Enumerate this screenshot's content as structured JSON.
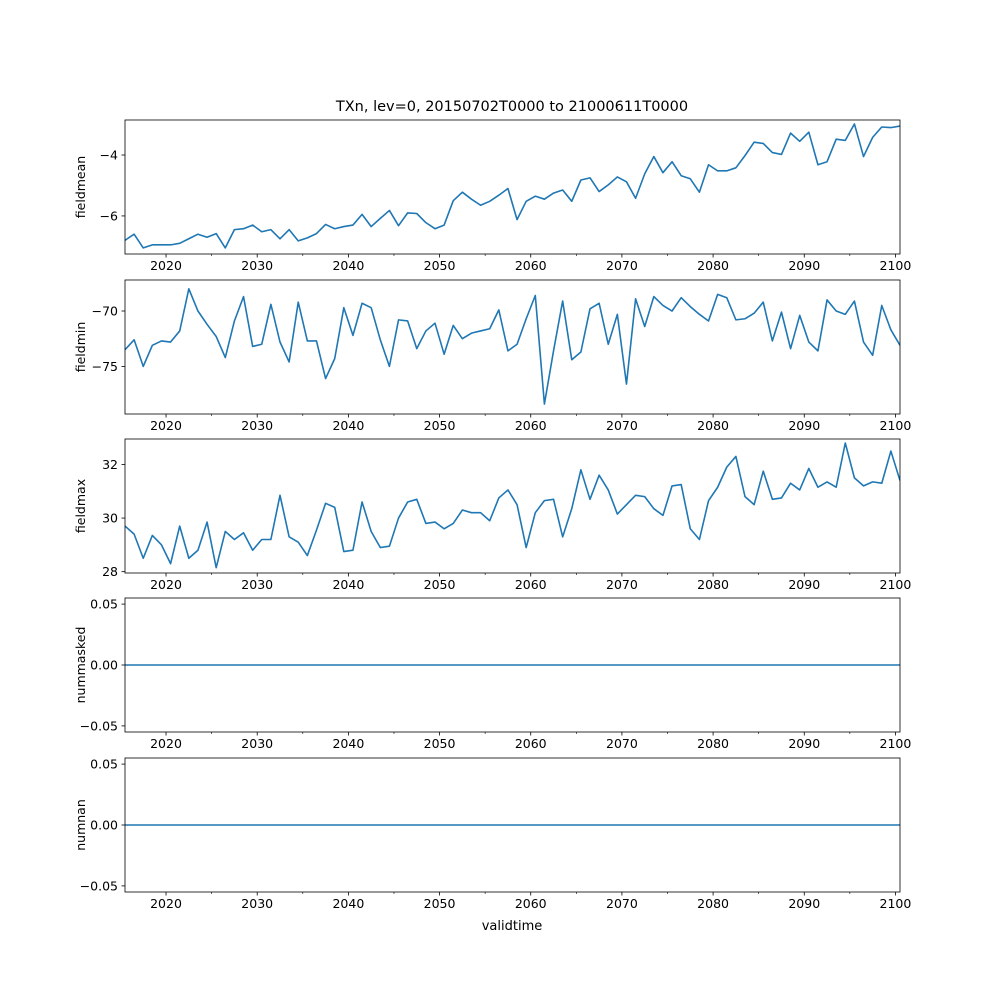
{
  "figure": {
    "title": "TXn, lev=0, 20150702T0000 to 21000611T0000",
    "xlabel": "validtime",
    "line_color": "#1f77b4"
  },
  "chart_data": [
    {
      "type": "line",
      "name": "fieldmean",
      "ylabel": "fieldmean",
      "xlim": [
        2015.5,
        2100.5
      ],
      "ylim": [
        -7.25,
        -2.85
      ],
      "yticks": [
        {
          "v": -6,
          "label": "−6"
        },
        {
          "v": -4,
          "label": "−4"
        }
      ],
      "x": [
        2015.5,
        2016.5,
        2017.5,
        2018.5,
        2019.5,
        2020.5,
        2021.5,
        2022.5,
        2023.5,
        2024.5,
        2025.5,
        2026.5,
        2027.5,
        2028.5,
        2029.5,
        2030.5,
        2031.5,
        2032.5,
        2033.5,
        2034.5,
        2035.5,
        2036.5,
        2037.5,
        2038.5,
        2039.5,
        2040.5,
        2041.5,
        2042.5,
        2043.5,
        2044.5,
        2045.5,
        2046.5,
        2047.5,
        2048.5,
        2049.5,
        2050.5,
        2051.5,
        2052.5,
        2053.5,
        2054.5,
        2055.5,
        2056.5,
        2057.5,
        2058.5,
        2059.5,
        2060.5,
        2061.5,
        2062.5,
        2063.5,
        2064.5,
        2065.5,
        2066.5,
        2067.5,
        2068.5,
        2069.5,
        2070.5,
        2071.5,
        2072.5,
        2073.5,
        2074.5,
        2075.5,
        2076.5,
        2077.5,
        2078.5,
        2079.5,
        2080.5,
        2081.5,
        2082.5,
        2083.5,
        2084.5,
        2085.5,
        2086.5,
        2087.5,
        2088.5,
        2089.5,
        2090.5,
        2091.5,
        2092.5,
        2093.5,
        2094.5,
        2095.5,
        2096.5,
        2097.5,
        2098.5,
        2099.5,
        2100.5
      ],
      "values": [
        -6.8,
        -6.6,
        -7.05,
        -6.95,
        -6.95,
        -6.95,
        -6.9,
        -6.75,
        -6.6,
        -6.7,
        -6.58,
        -7.05,
        -6.45,
        -6.42,
        -6.3,
        -6.52,
        -6.45,
        -6.75,
        -6.45,
        -6.82,
        -6.72,
        -6.58,
        -6.28,
        -6.42,
        -6.35,
        -6.3,
        -5.95,
        -6.35,
        -6.08,
        -5.82,
        -6.32,
        -5.9,
        -5.92,
        -6.22,
        -6.42,
        -6.3,
        -5.5,
        -5.22,
        -5.45,
        -5.65,
        -5.52,
        -5.32,
        -5.1,
        -6.12,
        -5.52,
        -5.35,
        -5.45,
        -5.25,
        -5.15,
        -5.52,
        -4.82,
        -4.75,
        -5.2,
        -4.98,
        -4.72,
        -4.88,
        -5.42,
        -4.62,
        -4.05,
        -4.58,
        -4.22,
        -4.68,
        -4.78,
        -5.22,
        -4.32,
        -4.52,
        -4.52,
        -4.42,
        -4.02,
        -3.58,
        -3.62,
        -3.92,
        -3.98,
        -3.28,
        -3.55,
        -3.25,
        -4.32,
        -4.22,
        -3.48,
        -3.52,
        -2.98,
        -4.05,
        -3.42,
        -3.08,
        -3.1,
        -3.05
      ]
    },
    {
      "type": "line",
      "name": "fieldmin",
      "ylabel": "fieldmin",
      "xlim": [
        2015.5,
        2100.5
      ],
      "ylim": [
        -79.3,
        -67.2
      ],
      "yticks": [
        {
          "v": -75,
          "label": "−75"
        },
        {
          "v": -70,
          "label": "−70"
        }
      ],
      "x": [
        2015.5,
        2016.5,
        2017.5,
        2018.5,
        2019.5,
        2020.5,
        2021.5,
        2022.5,
        2023.5,
        2024.5,
        2025.5,
        2026.5,
        2027.5,
        2028.5,
        2029.5,
        2030.5,
        2031.5,
        2032.5,
        2033.5,
        2034.5,
        2035.5,
        2036.5,
        2037.5,
        2038.5,
        2039.5,
        2040.5,
        2041.5,
        2042.5,
        2043.5,
        2044.5,
        2045.5,
        2046.5,
        2047.5,
        2048.5,
        2049.5,
        2050.5,
        2051.5,
        2052.5,
        2053.5,
        2054.5,
        2055.5,
        2056.5,
        2057.5,
        2058.5,
        2059.5,
        2060.5,
        2061.5,
        2062.5,
        2063.5,
        2064.5,
        2065.5,
        2066.5,
        2067.5,
        2068.5,
        2069.5,
        2070.5,
        2071.5,
        2072.5,
        2073.5,
        2074.5,
        2075.5,
        2076.5,
        2077.5,
        2078.5,
        2079.5,
        2080.5,
        2081.5,
        2082.5,
        2083.5,
        2084.5,
        2085.5,
        2086.5,
        2087.5,
        2088.5,
        2089.5,
        2090.5,
        2091.5,
        2092.5,
        2093.5,
        2094.5,
        2095.5,
        2096.5,
        2097.5,
        2098.5,
        2099.5,
        2100.5
      ],
      "values": [
        -73.5,
        -72.6,
        -75.0,
        -73.1,
        -72.7,
        -72.8,
        -71.8,
        -68.0,
        -70.0,
        -71.2,
        -72.3,
        -74.2,
        -70.9,
        -68.7,
        -73.2,
        -73.0,
        -69.4,
        -72.8,
        -74.6,
        -69.2,
        -72.7,
        -72.7,
        -76.1,
        -74.3,
        -69.7,
        -72.2,
        -69.3,
        -69.7,
        -72.6,
        -75.0,
        -70.8,
        -70.9,
        -73.4,
        -71.8,
        -71.1,
        -73.9,
        -71.3,
        -72.5,
        -72.0,
        -71.8,
        -71.6,
        -69.9,
        -73.6,
        -73.0,
        -70.7,
        -68.6,
        -78.4,
        -73.6,
        -69.1,
        -74.4,
        -73.7,
        -69.8,
        -69.3,
        -73.0,
        -70.3,
        -76.6,
        -68.9,
        -71.4,
        -68.7,
        -69.5,
        -70.0,
        -68.8,
        -69.6,
        -70.3,
        -70.9,
        -68.5,
        -68.8,
        -70.8,
        -70.7,
        -70.2,
        -69.2,
        -72.7,
        -70.1,
        -73.4,
        -70.4,
        -72.8,
        -73.6,
        -69.0,
        -70.0,
        -70.3,
        -69.1,
        -72.8,
        -74.0,
        -69.5,
        -71.7,
        -73.1
      ]
    },
    {
      "type": "line",
      "name": "fieldmax",
      "ylabel": "fieldmax",
      "xlim": [
        2015.5,
        2100.5
      ],
      "ylim": [
        27.95,
        32.95
      ],
      "yticks": [
        {
          "v": 28,
          "label": "28"
        },
        {
          "v": 30,
          "label": "30"
        },
        {
          "v": 32,
          "label": "32"
        }
      ],
      "x": [
        2015.5,
        2016.5,
        2017.5,
        2018.5,
        2019.5,
        2020.5,
        2021.5,
        2022.5,
        2023.5,
        2024.5,
        2025.5,
        2026.5,
        2027.5,
        2028.5,
        2029.5,
        2030.5,
        2031.5,
        2032.5,
        2033.5,
        2034.5,
        2035.5,
        2036.5,
        2037.5,
        2038.5,
        2039.5,
        2040.5,
        2041.5,
        2042.5,
        2043.5,
        2044.5,
        2045.5,
        2046.5,
        2047.5,
        2048.5,
        2049.5,
        2050.5,
        2051.5,
        2052.5,
        2053.5,
        2054.5,
        2055.5,
        2056.5,
        2057.5,
        2058.5,
        2059.5,
        2060.5,
        2061.5,
        2062.5,
        2063.5,
        2064.5,
        2065.5,
        2066.5,
        2067.5,
        2068.5,
        2069.5,
        2070.5,
        2071.5,
        2072.5,
        2073.5,
        2074.5,
        2075.5,
        2076.5,
        2077.5,
        2078.5,
        2079.5,
        2080.5,
        2081.5,
        2082.5,
        2083.5,
        2084.5,
        2085.5,
        2086.5,
        2087.5,
        2088.5,
        2089.5,
        2090.5,
        2091.5,
        2092.5,
        2093.5,
        2094.5,
        2095.5,
        2096.5,
        2097.5,
        2098.5,
        2099.5,
        2100.5
      ],
      "values": [
        29.7,
        29.4,
        28.5,
        29.35,
        29.0,
        28.3,
        29.7,
        28.5,
        28.8,
        29.85,
        28.15,
        29.5,
        29.2,
        29.45,
        28.8,
        29.2,
        29.2,
        30.85,
        29.3,
        29.1,
        28.6,
        29.55,
        30.55,
        30.4,
        28.75,
        28.8,
        30.6,
        29.5,
        28.9,
        28.95,
        30.0,
        30.6,
        30.7,
        29.8,
        29.85,
        29.6,
        29.8,
        30.3,
        30.2,
        30.2,
        29.9,
        30.75,
        31.05,
        30.5,
        28.9,
        30.2,
        30.65,
        30.7,
        29.3,
        30.35,
        31.8,
        30.7,
        31.6,
        31.05,
        30.15,
        30.5,
        30.85,
        30.8,
        30.35,
        30.1,
        31.2,
        31.25,
        29.6,
        29.2,
        30.65,
        31.15,
        31.9,
        32.3,
        30.8,
        30.5,
        31.75,
        30.7,
        30.75,
        31.3,
        31.05,
        31.85,
        31.15,
        31.35,
        31.15,
        32.8,
        31.5,
        31.2,
        31.35,
        31.3,
        32.5,
        31.4
      ]
    },
    {
      "type": "line",
      "name": "nummasked",
      "ylabel": "nummasked",
      "xlim": [
        2015.5,
        2100.5
      ],
      "ylim": [
        -0.055,
        0.055
      ],
      "yticks": [
        {
          "v": -0.05,
          "label": "−0.05"
        },
        {
          "v": 0,
          "label": "0.00"
        },
        {
          "v": 0.05,
          "label": "0.05"
        }
      ],
      "x": [
        2015.5,
        2100.5
      ],
      "values": [
        0,
        0
      ]
    },
    {
      "type": "line",
      "name": "numnan",
      "ylabel": "numnan",
      "xlim": [
        2015.5,
        2100.5
      ],
      "ylim": [
        -0.055,
        0.055
      ],
      "yticks": [
        {
          "v": -0.05,
          "label": "−0.05"
        },
        {
          "v": 0,
          "label": "0.00"
        },
        {
          "v": 0.05,
          "label": "0.05"
        }
      ],
      "x": [
        2015.5,
        2100.5
      ],
      "values": [
        0,
        0
      ]
    }
  ],
  "xaxis": {
    "major_ticks": [
      {
        "v": 2020,
        "label": "2020"
      },
      {
        "v": 2030,
        "label": "2030"
      },
      {
        "v": 2040,
        "label": "2040"
      },
      {
        "v": 2050,
        "label": "2050"
      },
      {
        "v": 2060,
        "label": "2060"
      },
      {
        "v": 2070,
        "label": "2070"
      },
      {
        "v": 2080,
        "label": "2080"
      },
      {
        "v": 2090,
        "label": "2090"
      },
      {
        "v": 2100,
        "label": "2100"
      }
    ],
    "minor_ticks": [
      2025,
      2035,
      2045,
      2055,
      2065,
      2075,
      2085,
      2095
    ]
  }
}
